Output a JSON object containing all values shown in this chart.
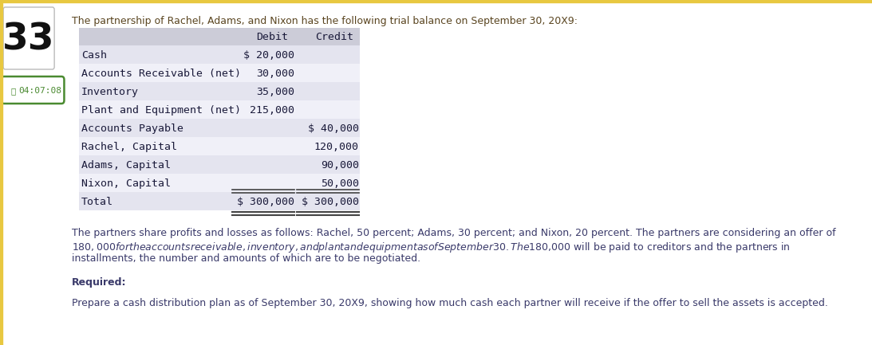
{
  "question_number": "33",
  "timer": "04:07:08",
  "intro_text": "The partnership of Rachel, Adams, and Nixon has the following trial balance on September 30, 20X9:",
  "table_header_labels": [
    "Debit",
    "Credit"
  ],
  "table_rows": [
    [
      "Cash",
      "$ 20,000",
      ""
    ],
    [
      "Accounts Receivable (net)",
      "30,000",
      ""
    ],
    [
      "Inventory",
      "35,000",
      ""
    ],
    [
      "Plant and Equipment (net)",
      "215,000",
      ""
    ],
    [
      "Accounts Payable",
      "",
      "$ 40,000"
    ],
    [
      "Rachel, Capital",
      "",
      "120,000"
    ],
    [
      "Adams, Capital",
      "",
      "90,000"
    ],
    [
      "Nixon, Capital",
      "",
      "50,000"
    ],
    [
      "Total",
      "$ 300,000",
      "$ 300,000"
    ]
  ],
  "para_line1": "The partners share profits and losses as follows: Rachel, 50 percent; Adams, 30 percent; and Nixon, 20 percent. The partners are considering an offer of",
  "para_line2": "$180,000 for the accounts receivable, inventory, and plant and equipment as of September 30. The $180,000 will be paid to creditors and the partners in",
  "para_line3": "installments, the number and amounts of which are to be negotiated.",
  "required_label": "Required:",
  "required_text": "Prepare a cash distribution plan as of September 30, 20X9, showing how much cash each partner will receive if the offer to sell the assets is accepted.",
  "bg_color": "#ffffff",
  "top_border_color": "#e8c840",
  "left_border_color": "#e8c840",
  "table_header_bg": "#ccccd8",
  "table_row_alt_bg": "#e4e4ef",
  "table_row_bg": "#f0f0f8",
  "text_color_dark": "#1a1a3a",
  "intro_color": "#5a4520",
  "paragraph_color": "#3a3a6a",
  "timer_color": "#4a8a30",
  "timer_border_color": "#4a8a30",
  "qnum_color": "#111111",
  "mono_font": "DejaVu Sans Mono",
  "sans_font": "DejaVu Sans",
  "table_font_size": 9.5,
  "para_font_size": 9.0,
  "qnum_font_size": 34
}
